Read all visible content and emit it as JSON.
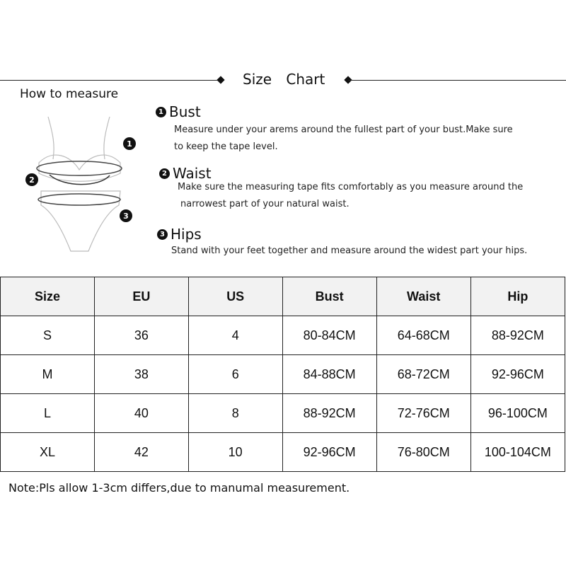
{
  "header": {
    "title": "Size Chart"
  },
  "how_to_measure": "How to measure",
  "sections": [
    {
      "num": "1",
      "title": "Bust",
      "lines": [
        "Measure under your arems around the fullest part of your bust.Make sure",
        "to keep the tape level."
      ]
    },
    {
      "num": "2",
      "title": "Waist",
      "lines": [
        "Make sure the measuring tape fits comfortably as you measure around the",
        "narrowest part of your natural waist."
      ]
    },
    {
      "num": "3",
      "title": "Hips",
      "lines": [
        "Stand with your feet together and measure around the widest part your hips."
      ]
    }
  ],
  "diagram_labels": [
    "1",
    "2",
    "3"
  ],
  "table": {
    "headers": [
      "Size",
      "EU",
      "US",
      "Bust",
      "Waist",
      "Hip"
    ],
    "rows": [
      [
        "S",
        "36",
        "4",
        "80-84CM",
        "64-68CM",
        "88-92CM"
      ],
      [
        "M",
        "38",
        "6",
        "84-88CM",
        "68-72CM",
        "92-96CM"
      ],
      [
        "L",
        "40",
        "8",
        "88-92CM",
        "72-76CM",
        "96-100CM"
      ],
      [
        "XL",
        "42",
        "10",
        "92-96CM",
        "76-80CM",
        "100-104CM"
      ]
    ]
  },
  "note": "Note:Pls allow 1-3cm differs,due to manumal measurement."
}
